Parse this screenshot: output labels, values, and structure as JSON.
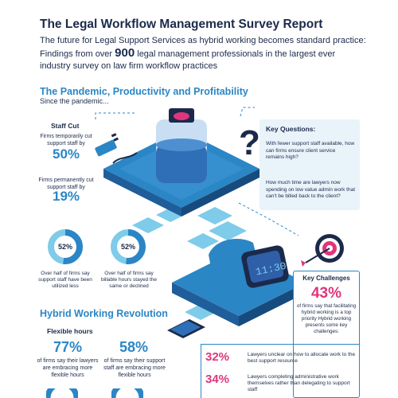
{
  "header": {
    "title": "The Legal Workflow Management Survey Report",
    "intro_before": "The future for Legal Support Services as hybrid working becomes standard practice: Findings from over ",
    "intro_number": "900",
    "intro_after": " legal management professionals in the largest ever industry survey on law firm workflow practices"
  },
  "pandemic": {
    "heading": "The Pandemic, Productivity and Profitability",
    "subheading": "Since the pandemic...",
    "staff_cut": {
      "heading": "Staff Cut",
      "stat1_desc": "Firms temporarily cut support staff by",
      "stat1_value": "50%",
      "stat2_desc": "Firms permanently cut support staff by",
      "stat2_value": "19%"
    },
    "donut1": {
      "value_label": "52%",
      "percent": 52,
      "desc": "Over half of firms say support staff have been utilized less"
    },
    "donut2": {
      "value_label": "52%",
      "percent": 52,
      "desc": "Over half of firms say billable hours stayed the same or declined"
    },
    "key_questions": {
      "heading": "Key Questions:",
      "q1": "With fewer support staff available, how can firms ensure client service remains high?",
      "q2": "How much time are lawyers now spending on low value admin work that can't be billed back to the client?"
    },
    "watch_display": "11:30"
  },
  "key_challenges": {
    "heading": "Key Challenges",
    "value": "43%",
    "desc": "of firms say that facilitating hybrid working is a top priority Hybrid working presents some key challenges:"
  },
  "hybrid": {
    "heading": "Hybrid Working Revolution",
    "flex_heading": "Flexible hours",
    "stat1_value": "77%",
    "stat1_desc": "of firms say their lawyers are embracing more flexible hours",
    "stat2_value": "58%",
    "stat2_desc": "of firms say their support staff are embracing more flexible hours"
  },
  "challenges": [
    {
      "value": "32%",
      "text": "Lawyers unclear on how to allocate work to the best support resource"
    },
    {
      "value": "34%",
      "text": "Lawyers completing administrative work themselves rather than delegating to support staff"
    }
  ],
  "colors": {
    "navy": "#1b2a4a",
    "blue": "#2b86c5",
    "light_blue": "#7ecbea",
    "pale_blue": "#e9f3fa",
    "pink": "#e0357c"
  }
}
